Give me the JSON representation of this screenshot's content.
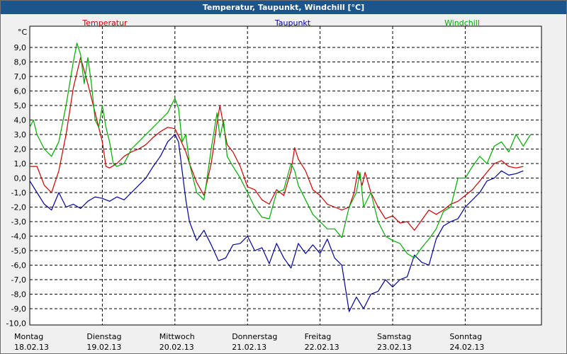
{
  "window": {
    "title": "Temperatur, Taupunkt, Windchill [°C]"
  },
  "chart_data": {
    "type": "line",
    "title": "Temperatur, Taupunkt, Windchill [°C]",
    "ylabel": "°C",
    "ylim": [
      -10.0,
      10.0
    ],
    "xlim": [
      0,
      7
    ],
    "grid": true,
    "legend_position": "top",
    "y_ticks": [
      "9,0",
      "8,0",
      "7,0",
      "6,0",
      "5,0",
      "4,0",
      "3,0",
      "2,0",
      "1,0",
      "0,0",
      "-1,0",
      "-2,0",
      "-3,0",
      "-4,0",
      "-5,0",
      "-6,0",
      "-7,0",
      "-8,0",
      "-9,0",
      "-10,0"
    ],
    "x_ticks": [
      {
        "day": "Montag",
        "date": "18.02.13"
      },
      {
        "day": "Dienstag",
        "date": "19.02.13"
      },
      {
        "day": "Mittwoch",
        "date": "20.02.13"
      },
      {
        "day": "Donnerstag",
        "date": "21.02.13"
      },
      {
        "day": "Freitag",
        "date": "22.02.13"
      },
      {
        "day": "Samstag",
        "date": "23.02.13"
      },
      {
        "day": "Sonntag",
        "date": "24.02.13"
      }
    ],
    "series": [
      {
        "name": "Temperatur",
        "color": "#cc0000",
        "points": [
          [
            0.0,
            0.8
          ],
          [
            0.1,
            0.8
          ],
          [
            0.2,
            -0.5
          ],
          [
            0.3,
            -1.0
          ],
          [
            0.4,
            0.5
          ],
          [
            0.5,
            3.0
          ],
          [
            0.6,
            6.2
          ],
          [
            0.7,
            8.3
          ],
          [
            0.8,
            6.5
          ],
          [
            0.9,
            4.5
          ],
          [
            1.0,
            2.5
          ],
          [
            1.05,
            0.8
          ],
          [
            1.1,
            0.7
          ],
          [
            1.2,
            1.0
          ],
          [
            1.3,
            1.5
          ],
          [
            1.4,
            1.8
          ],
          [
            1.5,
            2.0
          ],
          [
            1.6,
            2.3
          ],
          [
            1.7,
            2.8
          ],
          [
            1.8,
            3.2
          ],
          [
            1.9,
            3.5
          ],
          [
            2.0,
            3.4
          ],
          [
            2.08,
            2.6
          ],
          [
            2.15,
            1.8
          ],
          [
            2.2,
            1.0
          ],
          [
            2.3,
            -0.3
          ],
          [
            2.4,
            -1.2
          ],
          [
            2.5,
            1.0
          ],
          [
            2.58,
            3.8
          ],
          [
            2.62,
            5.0
          ],
          [
            2.67,
            3.6
          ],
          [
            2.72,
            2.3
          ],
          [
            2.8,
            1.8
          ],
          [
            2.9,
            0.8
          ],
          [
            3.0,
            -0.6
          ],
          [
            3.1,
            -0.8
          ],
          [
            3.2,
            -1.5
          ],
          [
            3.3,
            -1.8
          ],
          [
            3.4,
            -0.8
          ],
          [
            3.5,
            -1.2
          ],
          [
            3.6,
            0.5
          ],
          [
            3.65,
            2.1
          ],
          [
            3.7,
            1.3
          ],
          [
            3.8,
            0.5
          ],
          [
            3.9,
            -0.8
          ],
          [
            4.0,
            -1.2
          ],
          [
            4.1,
            -1.8
          ],
          [
            4.2,
            -2.0
          ],
          [
            4.3,
            -2.2
          ],
          [
            4.4,
            -2.0
          ],
          [
            4.47,
            -1.0
          ],
          [
            4.52,
            0.5
          ],
          [
            4.58,
            -0.5
          ],
          [
            4.62,
            0.4
          ],
          [
            4.7,
            -1.0
          ],
          [
            4.8,
            -2.0
          ],
          [
            4.9,
            -2.8
          ],
          [
            5.0,
            -2.6
          ],
          [
            5.1,
            -3.1
          ],
          [
            5.2,
            -3.0
          ],
          [
            5.3,
            -3.6
          ],
          [
            5.4,
            -2.9
          ],
          [
            5.5,
            -2.2
          ],
          [
            5.6,
            -2.5
          ],
          [
            5.7,
            -2.2
          ],
          [
            5.8,
            -1.8
          ],
          [
            5.9,
            -1.6
          ],
          [
            6.0,
            -1.2
          ],
          [
            6.1,
            -0.8
          ],
          [
            6.2,
            -0.2
          ],
          [
            6.3,
            0.4
          ],
          [
            6.4,
            1.0
          ],
          [
            6.5,
            1.2
          ],
          [
            6.6,
            0.8
          ],
          [
            6.7,
            0.7
          ],
          [
            6.8,
            0.8
          ]
        ]
      },
      {
        "name": "Taupunkt",
        "color": "#000099",
        "points": [
          [
            0.0,
            -0.2
          ],
          [
            0.1,
            -1.0
          ],
          [
            0.2,
            -1.8
          ],
          [
            0.3,
            -2.2
          ],
          [
            0.4,
            -1.0
          ],
          [
            0.5,
            -2.0
          ],
          [
            0.6,
            -1.8
          ],
          [
            0.7,
            -2.1
          ],
          [
            0.8,
            -1.6
          ],
          [
            0.9,
            -1.3
          ],
          [
            1.0,
            -1.4
          ],
          [
            1.1,
            -1.6
          ],
          [
            1.2,
            -1.3
          ],
          [
            1.3,
            -1.5
          ],
          [
            1.4,
            -1.0
          ],
          [
            1.5,
            -0.5
          ],
          [
            1.6,
            0.0
          ],
          [
            1.7,
            0.8
          ],
          [
            1.8,
            1.5
          ],
          [
            1.9,
            2.5
          ],
          [
            2.0,
            3.0
          ],
          [
            2.05,
            2.5
          ],
          [
            2.1,
            0.5
          ],
          [
            2.15,
            -1.5
          ],
          [
            2.2,
            -3.0
          ],
          [
            2.3,
            -4.3
          ],
          [
            2.4,
            -3.6
          ],
          [
            2.5,
            -4.6
          ],
          [
            2.6,
            -5.7
          ],
          [
            2.7,
            -5.5
          ],
          [
            2.8,
            -4.6
          ],
          [
            2.9,
            -4.5
          ],
          [
            3.0,
            -4.0
          ],
          [
            3.1,
            -5.0
          ],
          [
            3.2,
            -4.8
          ],
          [
            3.3,
            -5.9
          ],
          [
            3.4,
            -4.5
          ],
          [
            3.5,
            -5.5
          ],
          [
            3.6,
            -6.2
          ],
          [
            3.7,
            -4.5
          ],
          [
            3.8,
            -5.2
          ],
          [
            3.9,
            -4.6
          ],
          [
            4.0,
            -5.2
          ],
          [
            4.1,
            -4.2
          ],
          [
            4.2,
            -5.5
          ],
          [
            4.3,
            -6.0
          ],
          [
            4.4,
            -9.2
          ],
          [
            4.5,
            -8.2
          ],
          [
            4.6,
            -9.0
          ],
          [
            4.7,
            -8.0
          ],
          [
            4.8,
            -7.8
          ],
          [
            4.9,
            -7.0
          ],
          [
            5.0,
            -7.5
          ],
          [
            5.1,
            -7.0
          ],
          [
            5.2,
            -6.8
          ],
          [
            5.3,
            -5.3
          ],
          [
            5.4,
            -5.8
          ],
          [
            5.5,
            -6.0
          ],
          [
            5.6,
            -4.2
          ],
          [
            5.7,
            -3.3
          ],
          [
            5.8,
            -3.0
          ],
          [
            5.9,
            -2.8
          ],
          [
            6.0,
            -2.0
          ],
          [
            6.1,
            -1.5
          ],
          [
            6.2,
            -1.0
          ],
          [
            6.3,
            -0.2
          ],
          [
            6.4,
            0.0
          ],
          [
            6.5,
            0.5
          ],
          [
            6.6,
            0.2
          ],
          [
            6.7,
            0.3
          ],
          [
            6.8,
            0.5
          ]
        ]
      },
      {
        "name": "Windchill",
        "color": "#00aa00",
        "points": [
          [
            0.0,
            3.5
          ],
          [
            0.05,
            4.0
          ],
          [
            0.1,
            3.0
          ],
          [
            0.2,
            2.0
          ],
          [
            0.3,
            1.5
          ],
          [
            0.4,
            2.5
          ],
          [
            0.5,
            5.0
          ],
          [
            0.6,
            8.0
          ],
          [
            0.65,
            9.3
          ],
          [
            0.7,
            8.5
          ],
          [
            0.75,
            6.5
          ],
          [
            0.8,
            8.3
          ],
          [
            0.85,
            6.5
          ],
          [
            0.9,
            4.0
          ],
          [
            0.95,
            3.5
          ],
          [
            1.0,
            5.0
          ],
          [
            1.05,
            3.5
          ],
          [
            1.1,
            2.5
          ],
          [
            1.15,
            1.0
          ],
          [
            1.2,
            0.8
          ],
          [
            1.3,
            1.0
          ],
          [
            1.4,
            2.0
          ],
          [
            1.5,
            2.5
          ],
          [
            1.6,
            3.0
          ],
          [
            1.7,
            3.5
          ],
          [
            1.8,
            4.0
          ],
          [
            1.9,
            4.5
          ],
          [
            2.0,
            5.5
          ],
          [
            2.05,
            4.8
          ],
          [
            2.1,
            2.5
          ],
          [
            2.15,
            3.0
          ],
          [
            2.2,
            1.0
          ],
          [
            2.3,
            -1.0
          ],
          [
            2.4,
            -1.5
          ],
          [
            2.5,
            2.0
          ],
          [
            2.58,
            4.5
          ],
          [
            2.62,
            2.8
          ],
          [
            2.67,
            4.0
          ],
          [
            2.72,
            1.5
          ],
          [
            2.8,
            0.8
          ],
          [
            2.9,
            0.0
          ],
          [
            3.0,
            -1.0
          ],
          [
            3.1,
            -2.0
          ],
          [
            3.2,
            -2.7
          ],
          [
            3.3,
            -2.8
          ],
          [
            3.4,
            -1.0
          ],
          [
            3.5,
            -0.8
          ],
          [
            3.6,
            1.0
          ],
          [
            3.65,
            0.5
          ],
          [
            3.7,
            -0.5
          ],
          [
            3.8,
            -1.5
          ],
          [
            3.9,
            -2.5
          ],
          [
            4.0,
            -3.0
          ],
          [
            4.1,
            -3.5
          ],
          [
            4.2,
            -3.5
          ],
          [
            4.3,
            -4.1
          ],
          [
            4.4,
            -2.0
          ],
          [
            4.5,
            -1.0
          ],
          [
            4.55,
            0.4
          ],
          [
            4.6,
            -2.0
          ],
          [
            4.7,
            -1.0
          ],
          [
            4.8,
            -3.0
          ],
          [
            4.9,
            -4.0
          ],
          [
            5.0,
            -4.3
          ],
          [
            5.1,
            -4.5
          ],
          [
            5.2,
            -5.2
          ],
          [
            5.3,
            -5.5
          ],
          [
            5.4,
            -4.8
          ],
          [
            5.5,
            -4.2
          ],
          [
            5.6,
            -3.5
          ],
          [
            5.7,
            -2.3
          ],
          [
            5.8,
            -2.0
          ],
          [
            5.9,
            0.0
          ],
          [
            6.0,
            0.0
          ],
          [
            6.1,
            0.8
          ],
          [
            6.2,
            1.5
          ],
          [
            6.3,
            1.0
          ],
          [
            6.4,
            2.2
          ],
          [
            6.5,
            2.5
          ],
          [
            6.6,
            1.8
          ],
          [
            6.7,
            3.0
          ],
          [
            6.8,
            2.2
          ],
          [
            6.9,
            3.0
          ]
        ]
      }
    ]
  }
}
